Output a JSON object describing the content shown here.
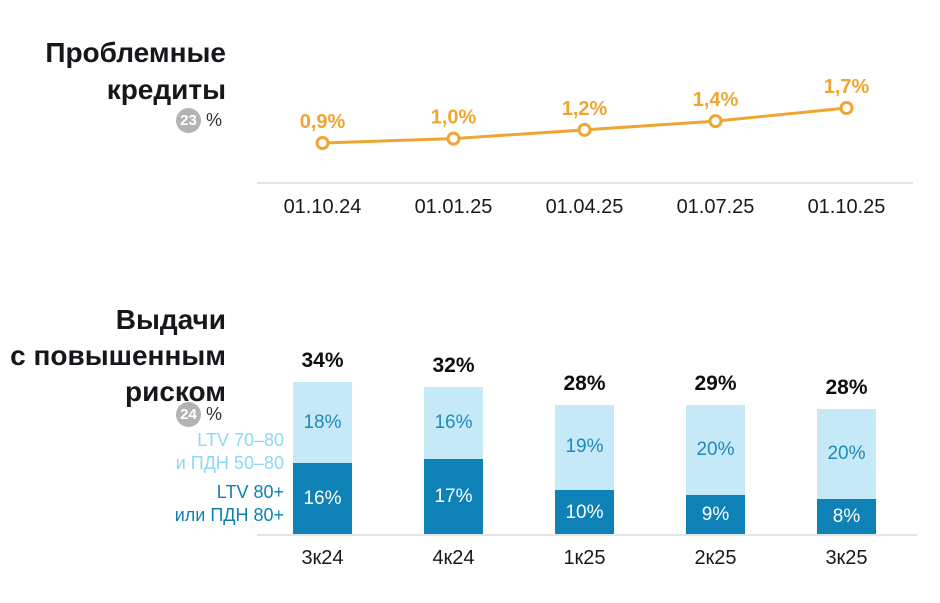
{
  "problem_loans": {
    "title_line1": "Проблемные",
    "title_line2": "кредиты",
    "badge_number": "23",
    "badge_unit": "%"
  },
  "risky_issuance": {
    "title_line1": "Выдачи",
    "title_line2": "с повышенным",
    "title_line3": "риском",
    "badge_number": "24",
    "badge_unit": "%",
    "legend_light_line1": "LTV 70–80",
    "legend_light_line2": "и ПДН 50–80",
    "legend_dark_line1": "LTV 80+",
    "legend_dark_line2": "или ПДН 80+"
  },
  "colors": {
    "line_orange": "#f0a532",
    "bar_light": "#c6e9f8",
    "bar_dark": "#0e82b6",
    "bar_light_label": "#1f89bc",
    "bar_dark_label": "#ffffff",
    "legend_light": "#8dd8f6",
    "legend_dark": "#0f80b3",
    "badge_gray": "#b2b3b5",
    "axis_gray": "#e4e4e6"
  },
  "chart_data": [
    {
      "type": "line",
      "title": "Проблемные кредиты",
      "unit": "%",
      "x": [
        "01.10.24",
        "01.01.25",
        "01.04.25",
        "01.07.25",
        "01.10.25"
      ],
      "values": [
        0.9,
        1.0,
        1.2,
        1.4,
        1.7
      ],
      "point_labels": [
        "0,9%",
        "1,0%",
        "1,2%",
        "1,4%",
        "1,7%"
      ],
      "ylim": [
        0.7,
        1.9
      ],
      "grid": false,
      "marker": "open-circle",
      "legend_position": "none"
    },
    {
      "type": "bar",
      "stacked": true,
      "title": "Выдачи с повышенным риском",
      "unit": "%",
      "categories": [
        "3к24",
        "4к24",
        "1к25",
        "2к25",
        "3к25"
      ],
      "series": [
        {
          "name": "LTV 70–80 и ПДН 50–80",
          "values": [
            18,
            16,
            19,
            20,
            20
          ],
          "labels": [
            "18%",
            "16%",
            "19%",
            "20%",
            "20%"
          ],
          "stack_position": "top"
        },
        {
          "name": "LTV 80+ или ПДН 80+",
          "values": [
            16,
            17,
            10,
            9,
            8
          ],
          "labels": [
            "16%",
            "17%",
            "10%",
            "9%",
            "8%"
          ],
          "stack_position": "bottom"
        }
      ],
      "totals": [
        34,
        32,
        28,
        29,
        28
      ],
      "total_labels": [
        "34%",
        "32%",
        "28%",
        "29%",
        "28%"
      ],
      "ylim": [
        0,
        38
      ],
      "grid": false,
      "legend_position": "left"
    }
  ]
}
